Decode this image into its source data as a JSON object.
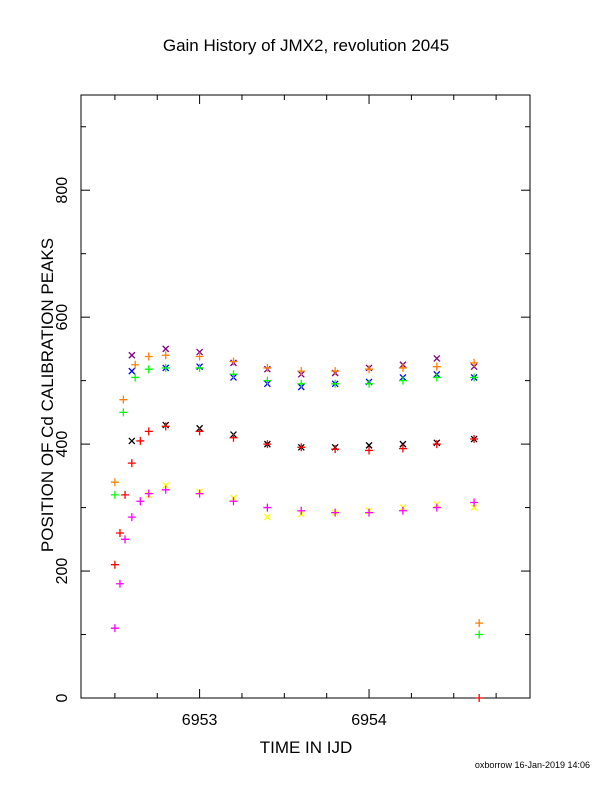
{
  "chart_data": {
    "type": "scatter",
    "title": "Gain History of JMX2, revolution 2045",
    "xlabel": "TIME IN IJD",
    "ylabel": "POSITION OF Cd CALIBRATION PEAKS",
    "xlim": [
      6952.3,
      6954.95
    ],
    "ylim": [
      0,
      950
    ],
    "xticks": [
      6953,
      6954
    ],
    "yticks": [
      0,
      200,
      400,
      600,
      800
    ],
    "grid": false,
    "series": [
      {
        "color": "#800080",
        "marker": "x",
        "x": [
          6952.6,
          6952.8,
          6953.0,
          6953.2,
          6953.4,
          6953.6,
          6953.8,
          6954.0,
          6954.2,
          6954.4,
          6954.62
        ],
        "y": [
          540,
          550,
          545,
          528,
          518,
          510,
          512,
          520,
          525,
          535,
          522
        ]
      },
      {
        "color": "#0000ff",
        "marker": "x",
        "x": [
          6952.6,
          6952.8,
          6953.0,
          6953.2,
          6953.4,
          6953.6,
          6953.8,
          6954.0,
          6954.2,
          6954.4,
          6954.62
        ],
        "y": [
          515,
          520,
          522,
          505,
          495,
          490,
          495,
          498,
          505,
          510,
          505
        ]
      },
      {
        "color": "#ff8000",
        "marker": "+",
        "x": [
          6952.5,
          6952.55,
          6952.62,
          6952.7,
          6952.8,
          6953.0,
          6953.2,
          6953.4,
          6953.6,
          6953.8,
          6954.0,
          6954.2,
          6954.4,
          6954.62
        ],
        "y": [
          340,
          470,
          525,
          538,
          540,
          538,
          530,
          520,
          515,
          515,
          518,
          520,
          522,
          528
        ]
      },
      {
        "color": "#00ff00",
        "marker": "+",
        "x": [
          6952.5,
          6952.55,
          6952.62,
          6952.7,
          6952.8,
          6953.0,
          6953.2,
          6953.4,
          6953.6,
          6953.8,
          6954.0,
          6954.2,
          6954.4,
          6954.62
        ],
        "y": [
          320,
          450,
          505,
          518,
          520,
          520,
          510,
          500,
          495,
          495,
          495,
          500,
          505,
          505
        ]
      },
      {
        "color": "#000000",
        "marker": "x",
        "x": [
          6952.6,
          6952.8,
          6953.0,
          6953.2,
          6953.4,
          6953.6,
          6953.8,
          6954.0,
          6954.2,
          6954.4,
          6954.62
        ],
        "y": [
          405,
          430,
          425,
          415,
          400,
          395,
          395,
          398,
          400,
          402,
          408
        ]
      },
      {
        "color": "#ff0000",
        "marker": "+",
        "x": [
          6952.5,
          6952.53,
          6952.56,
          6952.6,
          6952.65,
          6952.7,
          6952.8,
          6953.0,
          6953.2,
          6953.4,
          6953.6,
          6953.8,
          6954.0,
          6954.2,
          6954.4,
          6954.62
        ],
        "y": [
          210,
          260,
          320,
          370,
          405,
          420,
          428,
          420,
          410,
          400,
          395,
          392,
          390,
          393,
          400,
          408
        ]
      },
      {
        "color": "#ffff00",
        "marker": "x",
        "x": [
          6952.7,
          6952.8,
          6953.0,
          6953.2,
          6953.4,
          6953.6,
          6953.8,
          6954.0,
          6954.2,
          6954.4,
          6954.62
        ],
        "y": [
          320,
          335,
          325,
          315,
          285,
          290,
          292,
          295,
          300,
          305,
          300
        ]
      },
      {
        "color": "#ff00ff",
        "marker": "+",
        "x": [
          6952.5,
          6952.53,
          6952.56,
          6952.6,
          6952.65,
          6952.7,
          6952.8,
          6953.0,
          6953.2,
          6953.4,
          6953.6,
          6953.8,
          6954.0,
          6954.2,
          6954.4,
          6954.62
        ],
        "y": [
          110,
          180,
          250,
          285,
          310,
          322,
          328,
          322,
          310,
          300,
          295,
          292,
          292,
          295,
          300,
          308
        ]
      },
      {
        "color": "#ff8000",
        "marker": "+",
        "x": [
          6954.65
        ],
        "y": [
          118
        ]
      },
      {
        "color": "#00ff00",
        "marker": "+",
        "x": [
          6954.65
        ],
        "y": [
          100
        ]
      },
      {
        "color": "#ff0000",
        "marker": "+",
        "x": [
          6954.65
        ],
        "y": [
          0
        ]
      }
    ]
  },
  "footer": "oxborrow 16-Jan-2019 14:06"
}
